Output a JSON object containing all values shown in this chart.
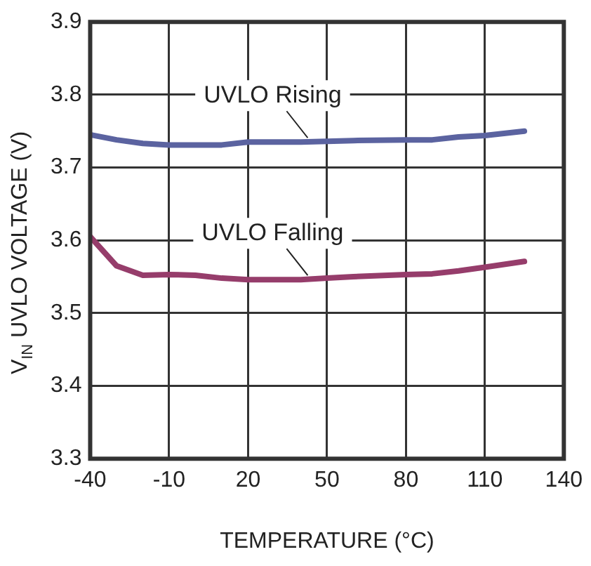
{
  "chart_data": {
    "type": "line",
    "xlabel": "TEMPERATURE (°C)",
    "ylabel": "V$_{IN}$ UVLO VOLTAGE (V)",
    "x": [
      -40,
      -30,
      -20,
      -10,
      0,
      10,
      20,
      40,
      50,
      60,
      80,
      90,
      100,
      110,
      125
    ],
    "series": [
      {
        "name": "UVLO Rising",
        "color": "#5b63a0",
        "values": [
          3.745,
          3.738,
          3.733,
          3.731,
          3.731,
          3.731,
          3.735,
          3.735,
          3.736,
          3.737,
          3.738,
          3.738,
          3.742,
          3.744,
          3.75
        ]
      },
      {
        "name": "UVLO Falling",
        "color": "#963d6b",
        "values": [
          3.605,
          3.565,
          3.552,
          3.553,
          3.552,
          3.548,
          3.546,
          3.546,
          3.548,
          3.55,
          3.553,
          3.554,
          3.558,
          3.563,
          3.571
        ]
      }
    ],
    "xlim": [
      -40,
      140
    ],
    "xticks": [
      -40,
      -10,
      20,
      50,
      80,
      110,
      140
    ],
    "ylim": [
      3.3,
      3.9
    ],
    "yticks": [
      3.3,
      3.4,
      3.5,
      3.6,
      3.7,
      3.8,
      3.9
    ],
    "grid": true,
    "legend": false,
    "marker": "none",
    "line_style": "solid"
  }
}
